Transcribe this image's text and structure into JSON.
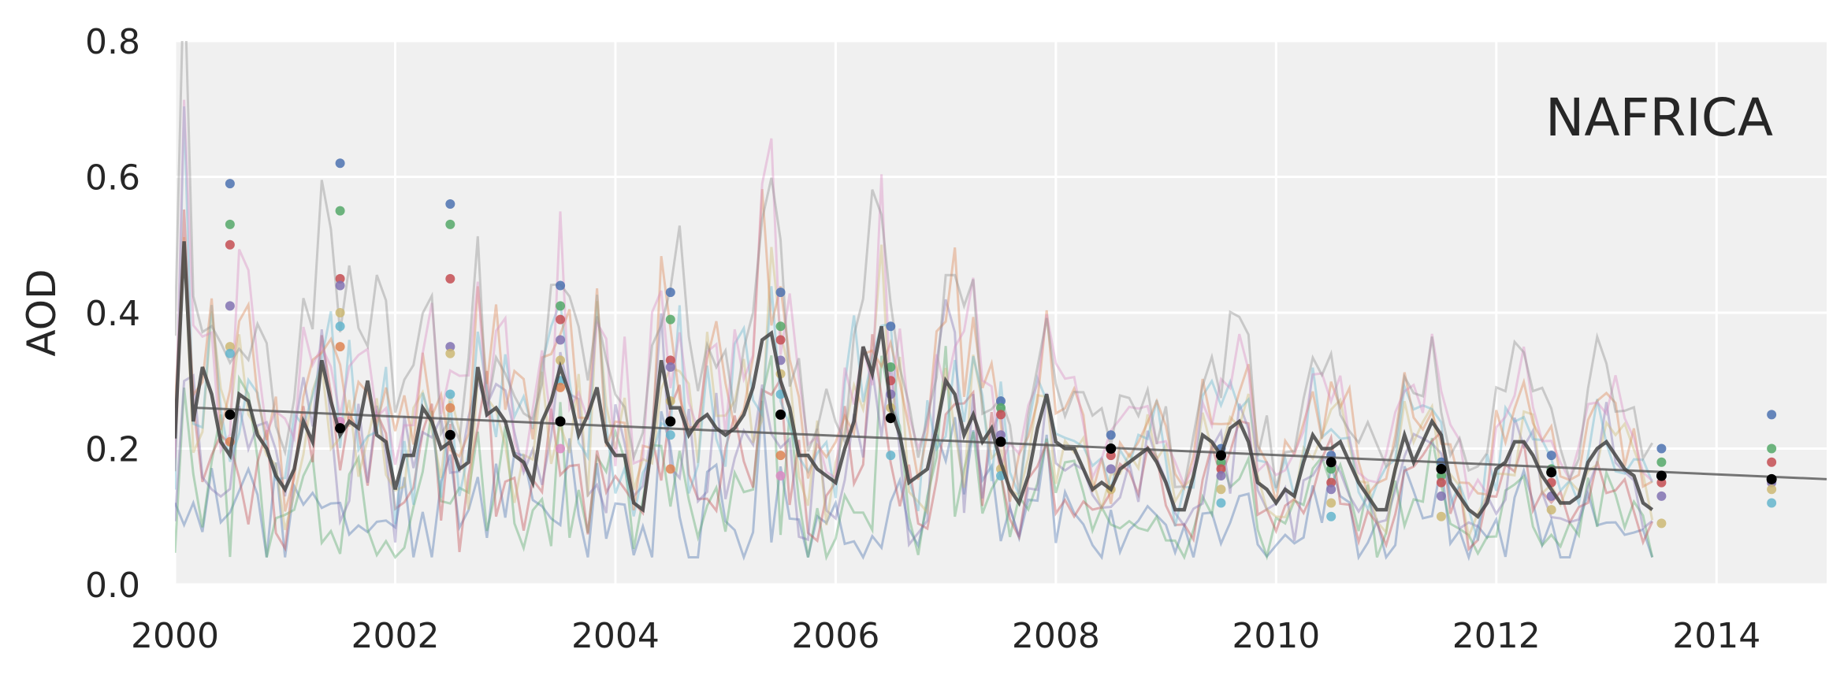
{
  "chart_data": {
    "type": "line",
    "title": "",
    "annotation": "NAFRICA",
    "xlabel": "",
    "ylabel": "AOD",
    "xlim": [
      2000,
      2015
    ],
    "ylim": [
      0.0,
      0.8
    ],
    "xticks": [
      "2000",
      "2002",
      "2004",
      "2006",
      "2008",
      "2010",
      "2012",
      "2014"
    ],
    "yticks": [
      "0.0",
      "0.2",
      "0.4",
      "0.6",
      "0.8"
    ],
    "grid": true,
    "legend": "none",
    "colors": {
      "background": "#f0f0f0",
      "grid": "#ffffff",
      "mean_line": "#444444",
      "trend_line": "#555555",
      "annual_mean_marker": "#000000",
      "series_palette": [
        "#4c72b0",
        "#55a868",
        "#c44e52",
        "#8172b2",
        "#ccb974",
        "#64b5cd",
        "#dd8452",
        "#da8bc3",
        "#8c8c8c"
      ]
    },
    "mean_series": {
      "x_start": 2000.0,
      "step": 0.08333,
      "values": [
        0.215,
        0.505,
        0.24,
        0.32,
        0.28,
        0.21,
        0.19,
        0.28,
        0.27,
        0.22,
        0.2,
        0.16,
        0.14,
        0.17,
        0.24,
        0.21,
        0.33,
        0.27,
        0.22,
        0.24,
        0.23,
        0.3,
        0.22,
        0.21,
        0.14,
        0.19,
        0.19,
        0.26,
        0.24,
        0.2,
        0.21,
        0.17,
        0.18,
        0.32,
        0.25,
        0.26,
        0.24,
        0.19,
        0.18,
        0.15,
        0.24,
        0.27,
        0.32,
        0.28,
        0.22,
        0.25,
        0.29,
        0.21,
        0.19,
        0.19,
        0.12,
        0.11,
        0.21,
        0.33,
        0.26,
        0.26,
        0.22,
        0.24,
        0.25,
        0.23,
        0.22,
        0.23,
        0.25,
        0.29,
        0.36,
        0.37,
        0.3,
        0.26,
        0.19,
        0.19,
        0.17,
        0.16,
        0.15,
        0.2,
        0.24,
        0.35,
        0.31,
        0.38,
        0.26,
        0.22,
        0.15,
        0.16,
        0.17,
        0.23,
        0.3,
        0.28,
        0.22,
        0.25,
        0.21,
        0.23,
        0.18,
        0.14,
        0.12,
        0.16,
        0.23,
        0.28,
        0.21,
        0.2,
        0.2,
        0.17,
        0.14,
        0.15,
        0.14,
        0.17,
        0.18,
        0.19,
        0.2,
        0.18,
        0.15,
        0.11,
        0.11,
        0.16,
        0.22,
        0.21,
        0.19,
        0.23,
        0.24,
        0.21,
        0.15,
        0.14,
        0.12,
        0.14,
        0.13,
        0.18,
        0.22,
        0.2,
        0.2,
        0.21,
        0.18,
        0.15,
        0.13,
        0.11,
        0.11,
        0.17,
        0.22,
        0.18,
        0.21,
        0.24,
        0.22,
        0.15,
        0.13,
        0.11,
        0.1,
        0.12,
        0.17,
        0.18,
        0.21,
        0.21,
        0.19,
        0.16,
        0.14,
        0.12,
        0.12,
        0.13,
        0.18,
        0.2,
        0.21,
        0.19,
        0.17,
        0.16,
        0.12,
        0.11
      ]
    },
    "trend_line": {
      "x": [
        2000.2,
        2015.0
      ],
      "y": [
        0.26,
        0.155
      ]
    },
    "annual_means": {
      "x": [
        2000.5,
        2001.5,
        2002.5,
        2003.5,
        2004.5,
        2005.5,
        2006.5,
        2007.5,
        2008.5,
        2009.5,
        2010.5,
        2011.5,
        2012.5,
        2013.5,
        2014.5
      ],
      "y": [
        0.25,
        0.23,
        0.22,
        0.24,
        0.24,
        0.25,
        0.245,
        0.21,
        0.2,
        0.19,
        0.18,
        0.17,
        0.165,
        0.16,
        0.155
      ]
    },
    "model_annual_points": [
      {
        "x": 2000.5,
        "y": [
          0.59,
          0.53,
          0.5,
          0.41,
          0.35,
          0.34,
          0.21
        ]
      },
      {
        "x": 2001.5,
        "y": [
          0.62,
          0.55,
          0.45,
          0.44,
          0.4,
          0.38,
          0.35,
          0.24
        ]
      },
      {
        "x": 2002.5,
        "y": [
          0.56,
          0.53,
          0.45,
          0.35,
          0.34,
          0.28,
          0.26
        ]
      },
      {
        "x": 2003.5,
        "y": [
          0.44,
          0.41,
          0.39,
          0.36,
          0.33,
          0.3,
          0.29,
          0.2
        ]
      },
      {
        "x": 2004.5,
        "y": [
          0.43,
          0.39,
          0.33,
          0.32,
          0.27,
          0.22,
          0.17
        ]
      },
      {
        "x": 2005.5,
        "y": [
          0.43,
          0.38,
          0.36,
          0.33,
          0.31,
          0.28,
          0.19,
          0.16
        ]
      },
      {
        "x": 2006.5,
        "y": [
          0.38,
          0.32,
          0.3,
          0.28,
          0.26,
          0.19
        ]
      },
      {
        "x": 2007.5,
        "y": [
          0.27,
          0.26,
          0.25,
          0.22,
          0.17,
          0.16
        ]
      },
      {
        "x": 2008.5,
        "y": [
          0.22,
          0.2,
          0.19,
          0.17,
          0.14
        ]
      },
      {
        "x": 2009.5,
        "y": [
          0.2,
          0.18,
          0.17,
          0.16,
          0.14,
          0.12
        ]
      },
      {
        "x": 2010.5,
        "y": [
          0.19,
          0.17,
          0.15,
          0.14,
          0.12,
          0.1
        ]
      },
      {
        "x": 2011.5,
        "y": [
          0.18,
          0.16,
          0.15,
          0.13,
          0.1
        ]
      },
      {
        "x": 2012.5,
        "y": [
          0.19,
          0.17,
          0.15,
          0.13,
          0.11
        ]
      },
      {
        "x": 2013.5,
        "y": [
          0.2,
          0.18,
          0.15,
          0.13,
          0.09
        ]
      },
      {
        "x": 2014.5,
        "y": [
          0.25,
          0.2,
          0.18,
          0.15,
          0.14,
          0.12
        ]
      }
    ]
  }
}
